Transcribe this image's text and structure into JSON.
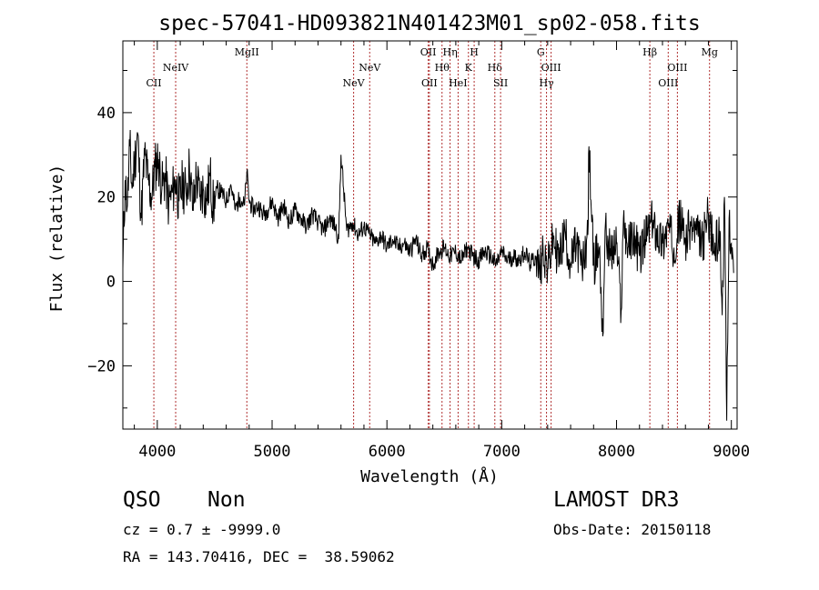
{
  "chart_data": {
    "type": "line",
    "title": "spec-57041-HD093821N401423M01_sp02-058.fits",
    "xlabel": "Wavelength (Å)",
    "ylabel": "Flux (relative)",
    "xlim": [
      3700,
      9050
    ],
    "ylim": [
      -35,
      57
    ],
    "xticks": [
      4000,
      5000,
      6000,
      7000,
      8000,
      9000
    ],
    "yticks": [
      -20,
      0,
      20,
      40
    ],
    "line_color": "#000000",
    "marker_color": "#b03030",
    "series": [
      {
        "x": [
          3700,
          3720,
          3740,
          3760,
          3780,
          3800,
          3830,
          3860,
          3890,
          3920,
          3950,
          3980,
          4010,
          4040,
          4070,
          4100,
          4130,
          4160,
          4190,
          4220,
          4250,
          4280,
          4310,
          4340,
          4370,
          4400,
          4430,
          4460,
          4490,
          4520,
          4560,
          4600,
          4640,
          4680,
          4720,
          4760,
          4780,
          4800,
          4840,
          4880,
          4920,
          4960,
          5000,
          5050,
          5100,
          5150,
          5200,
          5250,
          5300,
          5350,
          5400,
          5450,
          5500,
          5550,
          5580,
          5600,
          5650,
          5700,
          5750,
          5800,
          5850,
          5900,
          5950,
          6000,
          6050,
          6100,
          6150,
          6200,
          6250,
          6300,
          6350,
          6400,
          6450,
          6500,
          6550,
          6600,
          6650,
          6700,
          6750,
          6800,
          6850,
          6900,
          6950,
          7000,
          7050,
          7100,
          7150,
          7200,
          7250,
          7300,
          7330,
          7360,
          7400,
          7450,
          7500,
          7550,
          7600,
          7650,
          7700,
          7750,
          7760,
          7800,
          7850,
          7880,
          7900,
          7950,
          8000,
          8040,
          8060,
          8100,
          8150,
          8200,
          8250,
          8300,
          8350,
          8400,
          8450,
          8500,
          8550,
          8600,
          8650,
          8700,
          8750,
          8800,
          8850,
          8900,
          8920,
          8940,
          8960,
          8980,
          9000,
          9020
        ],
        "values": [
          3,
          24,
          18,
          32,
          22,
          28,
          35,
          15,
          30,
          24,
          20,
          27,
          29,
          22,
          25,
          18,
          21,
          24,
          19,
          23,
          21,
          27,
          17,
          25,
          20,
          22,
          19,
          25,
          17,
          22,
          21,
          19,
          23,
          17,
          20,
          18,
          26,
          19,
          17,
          18,
          16,
          17,
          19,
          15,
          18,
          14,
          17,
          15,
          13,
          16,
          14,
          12,
          15,
          13,
          10,
          30,
          12,
          14,
          11,
          13,
          11,
          9,
          11,
          8,
          10,
          8,
          9,
          7,
          10,
          6,
          8,
          4,
          7,
          8,
          6,
          7,
          5,
          8,
          6,
          5,
          7,
          6,
          4,
          7,
          5,
          6,
          5,
          7,
          4,
          6,
          2,
          8,
          3,
          10,
          5,
          12,
          4,
          9,
          3,
          11,
          32,
          4,
          8,
          -13,
          12,
          6,
          9,
          -7,
          15,
          8,
          11,
          6,
          10,
          14,
          12,
          9,
          13,
          8,
          15,
          10,
          13,
          11,
          9,
          16,
          7,
          12,
          -8,
          20,
          -33,
          15,
          9,
          2
        ],
        "noise": 5
      }
    ],
    "lines": [
      {
        "label": "CII",
        "x": 3970,
        "row": 3
      },
      {
        "label": "NeIV",
        "x": 4160,
        "row": 2
      },
      {
        "label": "MgII",
        "x": 4780,
        "row": 1
      },
      {
        "label": "NeV",
        "x": 5710,
        "row": 3
      },
      {
        "label": "NeV",
        "x": 5850,
        "row": 2
      },
      {
        "label": "OII",
        "x": 6360,
        "row": 1
      },
      {
        "label": "OII",
        "x": 6370,
        "row": 3
      },
      {
        "label": "Hθ",
        "x": 6480,
        "row": 2
      },
      {
        "label": "Hη",
        "x": 6550,
        "row": 1
      },
      {
        "label": "HeI",
        "x": 6620,
        "row": 3
      },
      {
        "label": "K",
        "x": 6710,
        "row": 2
      },
      {
        "label": "H",
        "x": 6760,
        "row": 1
      },
      {
        "label": "Hδ",
        "x": 6940,
        "row": 2
      },
      {
        "label": "SII",
        "x": 6990,
        "row": 3
      },
      {
        "label": "G",
        "x": 7340,
        "row": 1
      },
      {
        "label": "Hγ",
        "x": 7390,
        "row": 3
      },
      {
        "label": "OIII",
        "x": 7430,
        "row": 2
      },
      {
        "label": "Hβ",
        "x": 8290,
        "row": 1
      },
      {
        "label": "OIII",
        "x": 8450,
        "row": 3
      },
      {
        "label": "OIII",
        "x": 8530,
        "row": 2
      },
      {
        "label": "Mg",
        "x": 8810,
        "row": 1
      }
    ]
  },
  "footer": {
    "class_label": "QSO",
    "subclass_label": "Non",
    "survey": "LAMOST DR3",
    "cz": "cz = 0.7 ± -9999.0",
    "obs_date": "Obs-Date: 20150118",
    "coords": "RA = 143.70416, DEC =  38.59062"
  }
}
